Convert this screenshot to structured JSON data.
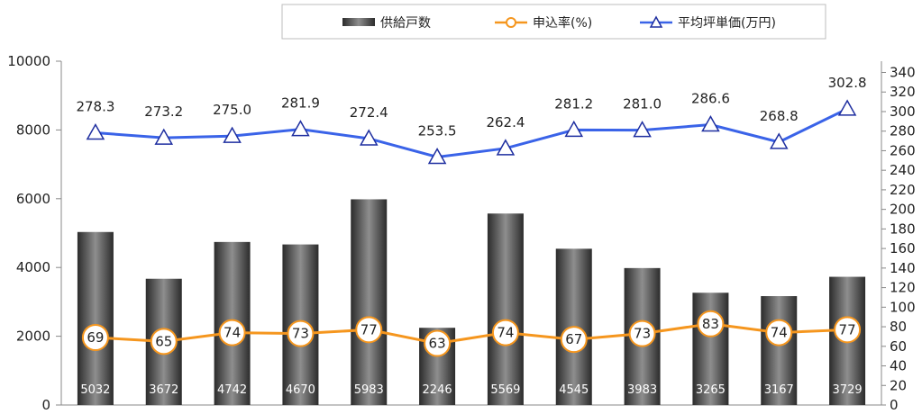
{
  "chart_data": {
    "type": "bar",
    "categories": [
      "",
      "",
      "",
      "",
      "",
      "",
      "",
      "",
      "",
      "",
      "",
      ""
    ],
    "legend": {
      "position": "top",
      "entries": [
        "供給戸数",
        "申込率(%)",
        "平均坪単価(万円)"
      ]
    },
    "series": [
      {
        "name": "供給戸数",
        "type": "bar",
        "axis": "left",
        "color": "#555555",
        "values": [
          5032,
          3672,
          4742,
          4670,
          5983,
          2246,
          5569,
          4545,
          3983,
          3265,
          3167,
          3729
        ]
      },
      {
        "name": "申込率(%)",
        "type": "line",
        "axis": "right",
        "color": "#f5961e",
        "values": [
          69,
          65,
          74,
          73,
          77,
          63,
          74,
          67,
          73,
          83,
          74,
          77
        ]
      },
      {
        "name": "平均坪単価(万円)",
        "type": "line",
        "axis": "right",
        "color": "#3a63e8",
        "values": [
          278.3,
          273.2,
          275.0,
          281.9,
          272.4,
          253.5,
          262.4,
          281.2,
          281.0,
          286.6,
          268.8,
          302.8
        ],
        "labels": [
          "278.3",
          "273.2",
          "275.0",
          "281.9",
          "272.4",
          "253.5",
          "262.4",
          "281.2",
          "281.0",
          "286.6",
          "268.8",
          "302.8"
        ]
      }
    ],
    "y_left": {
      "min": 0,
      "max": 10000,
      "ticks": [
        0,
        2000,
        4000,
        6000,
        8000,
        10000
      ]
    },
    "y_right": {
      "min": 0,
      "max": 350,
      "ticks": [
        0,
        20,
        40,
        60,
        80,
        100,
        120,
        140,
        160,
        180,
        200,
        220,
        240,
        260,
        280,
        300,
        320,
        340
      ]
    },
    "grid": false
  }
}
